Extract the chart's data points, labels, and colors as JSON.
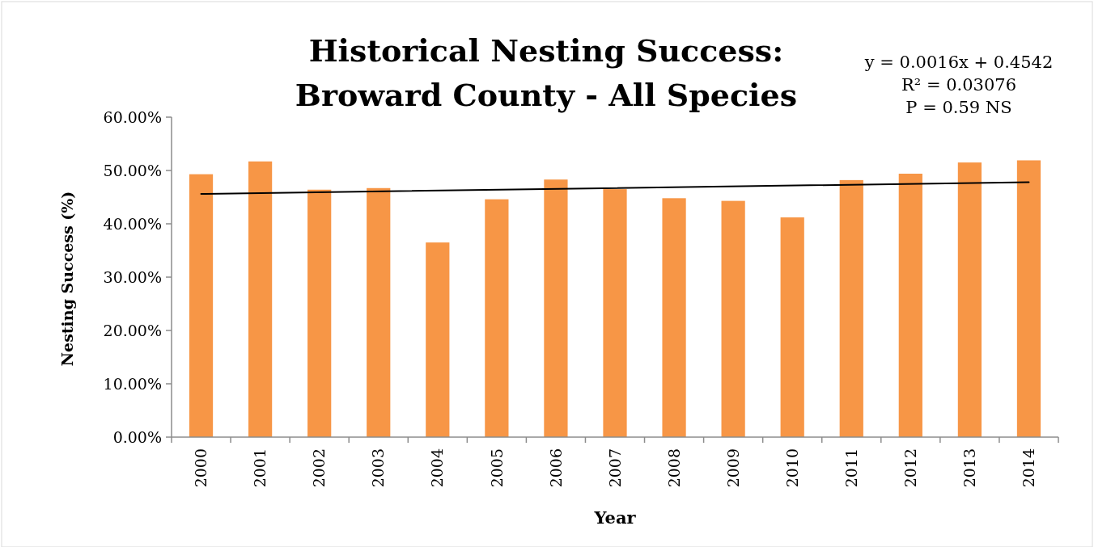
{
  "chart_data": {
    "type": "bar",
    "title": "Historical Nesting Success:\nBroward County - All Species",
    "xlabel": "Year",
    "ylabel": "Nesting Success (%)",
    "categories": [
      "2000",
      "2001",
      "2002",
      "2003",
      "2004",
      "2005",
      "2006",
      "2007",
      "2008",
      "2009",
      "2010",
      "2011",
      "2012",
      "2013",
      "2014"
    ],
    "series": [
      {
        "color": "#f79646",
        "values": [
          49.3,
          51.7,
          46.4,
          46.7,
          36.5,
          44.6,
          48.3,
          46.5,
          44.8,
          44.3,
          41.2,
          48.2,
          49.4,
          51.5,
          51.9
        ]
      },
      {
        "type": "line",
        "color": "#000000",
        "values": [
          45.6,
          null,
          null,
          null,
          null,
          null,
          null,
          null,
          null,
          null,
          null,
          null,
          null,
          null,
          47.8
        ]
      }
    ],
    "ylim": [
      0,
      60
    ],
    "yticks": [
      {
        "value": 0,
        "label": "0.00%"
      },
      {
        "value": 10,
        "label": "10.00%"
      },
      {
        "value": 20,
        "label": "20.00%"
      },
      {
        "value": 30,
        "label": "30.00%"
      },
      {
        "value": 40,
        "label": "40.00%"
      },
      {
        "value": 50,
        "label": "50.00%"
      },
      {
        "value": 60,
        "label": "60.00%"
      }
    ],
    "annotations": [
      "y = 0.0016x + 0.4542\nR² = 0.03076\nP = 0.59 NS"
    ],
    "grid": false
  }
}
